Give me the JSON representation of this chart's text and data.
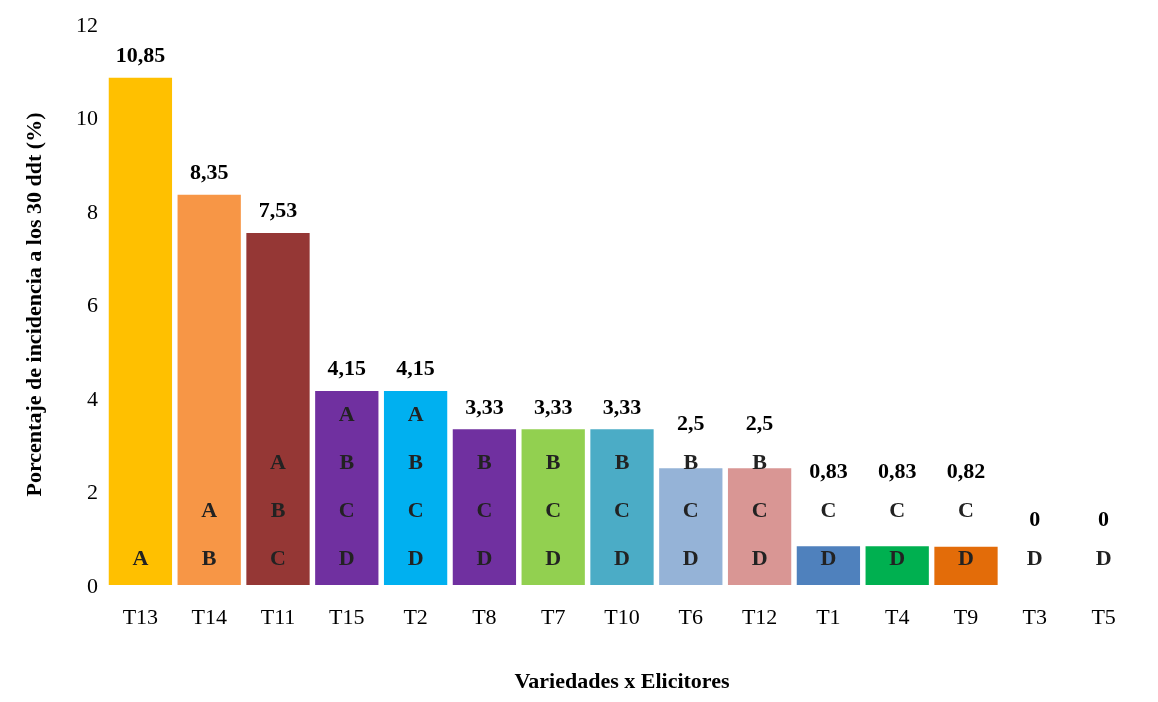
{
  "chart_data": {
    "type": "bar",
    "xlabel": "Variedades x Elicitores",
    "ylabel": "Porcentaje de incidencia a los 30 ddt (%)",
    "categories": [
      "T13",
      "T14",
      "T11",
      "T15",
      "T2",
      "T8",
      "T7",
      "T10",
      "T6",
      "T12",
      "T1",
      "T4",
      "T9",
      "T3",
      "T5"
    ],
    "values": [
      10.85,
      8.35,
      7.53,
      4.15,
      4.15,
      3.33,
      3.33,
      3.33,
      2.5,
      2.5,
      0.83,
      0.83,
      0.82,
      0,
      0
    ],
    "value_labels": [
      "10,85",
      "8,35",
      "7,53",
      "4,15",
      "4,15",
      "3,33",
      "3,33",
      "3,33",
      "2,5",
      "2,5",
      "0,83",
      "0,83",
      "0,82",
      "0",
      "0"
    ],
    "colors": [
      "#ffc000",
      "#f79646",
      "#953735",
      "#7030a0",
      "#00b0f0",
      "#7030a0",
      "#92d050",
      "#4bacc6",
      "#95b3d7",
      "#d99694",
      "#4f81bd",
      "#00b050",
      "#e36c09",
      "#4f81bd",
      "#4f81bd"
    ],
    "ylim": [
      0,
      12
    ],
    "yticks": [
      0,
      2,
      4,
      6,
      8,
      10,
      12
    ],
    "grid": false,
    "annotations": [
      "A",
      "A\nB",
      "A\nB\nC",
      "A\nB\nC\nD",
      "A\nB\nC\nD",
      "B\nC\nD",
      "B\nC\nD",
      "B\nC\nD",
      "B\nC\nD",
      "B\nC\nD",
      "C\nD",
      "C\nD",
      "C\nD",
      "D",
      "D"
    ]
  }
}
